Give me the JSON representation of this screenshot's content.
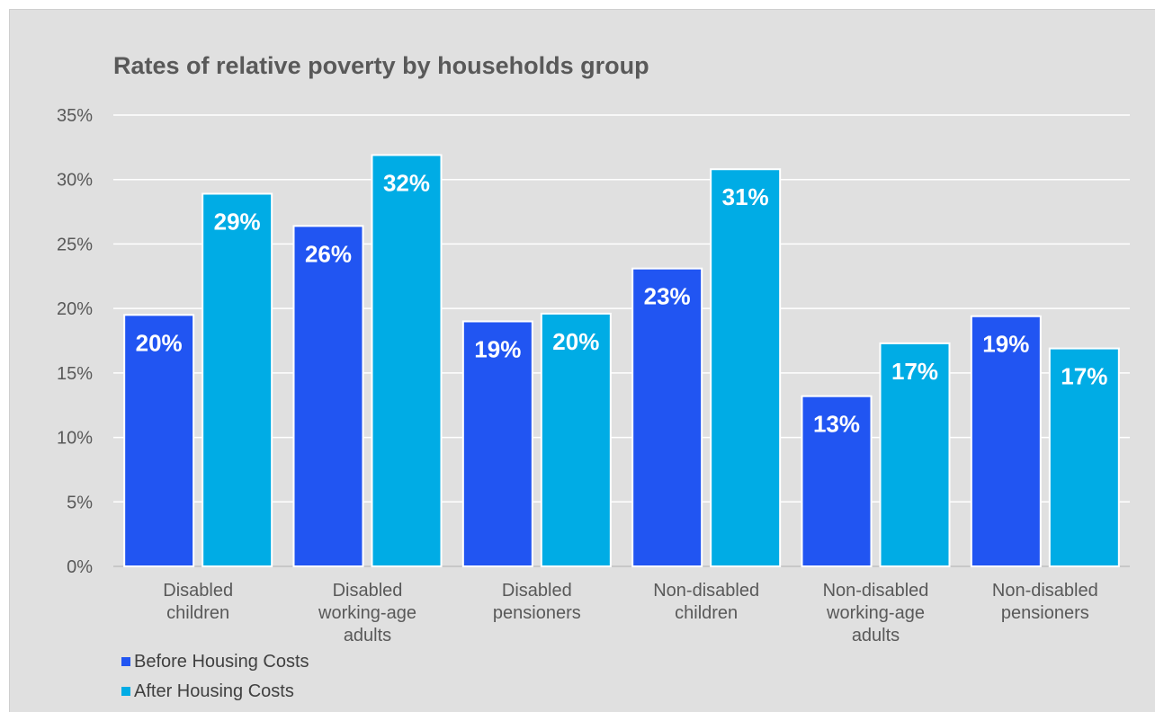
{
  "chart_data": {
    "type": "bar",
    "title": "Rates of relative poverty by households group",
    "xlabel": "",
    "ylabel": "",
    "ylim": [
      0,
      35
    ],
    "yticks": [
      "0%",
      "5%",
      "10%",
      "15%",
      "20%",
      "25%",
      "30%",
      "35%"
    ],
    "ytick_values": [
      0,
      5,
      10,
      15,
      20,
      25,
      30,
      35
    ],
    "grid": true,
    "legend_position": "bottom-left",
    "categories": [
      [
        "Disabled",
        "children"
      ],
      [
        "Disabled",
        "working-age",
        "adults"
      ],
      [
        "Disabled",
        "pensioners"
      ],
      [
        "Non-disabled",
        "children"
      ],
      [
        "Non-disabled",
        "working-age",
        "adults"
      ],
      [
        "Non-disabled",
        "pensioners"
      ]
    ],
    "series": [
      {
        "name": "Before Housing Costs",
        "color": "#2155f2",
        "values": [
          19.5,
          26.4,
          19.0,
          23.1,
          13.2,
          19.4
        ],
        "labels": [
          "20%",
          "26%",
          "19%",
          "23%",
          "13%",
          "19%"
        ]
      },
      {
        "name": "After Housing Costs",
        "color": "#00ace5",
        "values": [
          28.9,
          31.9,
          19.6,
          30.8,
          17.3,
          16.9
        ],
        "labels": [
          "29%",
          "32%",
          "20%",
          "31%",
          "17%",
          "17%"
        ]
      }
    ]
  }
}
